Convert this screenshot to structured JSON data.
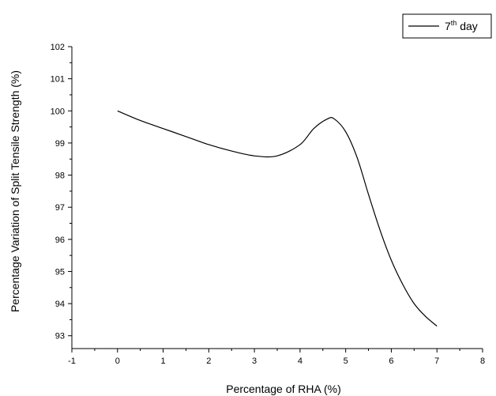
{
  "chart_data": {
    "type": "line",
    "title": "",
    "xlabel": "Percentage of RHA (%)",
    "ylabel": "Percentage Variation of Split Tensile Strength (%)",
    "xlim": [
      -1,
      8
    ],
    "ylim": [
      92.6,
      102
    ],
    "x_ticks": [
      -1,
      0,
      1,
      2,
      3,
      4,
      5,
      6,
      7,
      8
    ],
    "y_ticks": [
      93,
      94,
      95,
      96,
      97,
      98,
      99,
      100,
      101,
      102
    ],
    "x_minor_step": 0.5,
    "y_minor_step": 0.5,
    "grid": false,
    "legend_position": "top-right",
    "series": [
      {
        "name": "7th day",
        "name_base": "7",
        "name_sup": "th",
        "name_tail": " day",
        "color": "#000000",
        "x": [
          0,
          0.5,
          1,
          1.5,
          2,
          2.5,
          3,
          3.5,
          4,
          4.3,
          4.6,
          4.75,
          5,
          5.25,
          5.5,
          5.75,
          6,
          6.25,
          6.5,
          6.75,
          7
        ],
        "y": [
          100.0,
          99.7,
          99.45,
          99.2,
          98.95,
          98.75,
          98.6,
          98.6,
          98.95,
          99.45,
          99.75,
          99.75,
          99.35,
          98.55,
          97.4,
          96.3,
          95.35,
          94.6,
          94.0,
          93.6,
          93.3
        ]
      }
    ]
  }
}
